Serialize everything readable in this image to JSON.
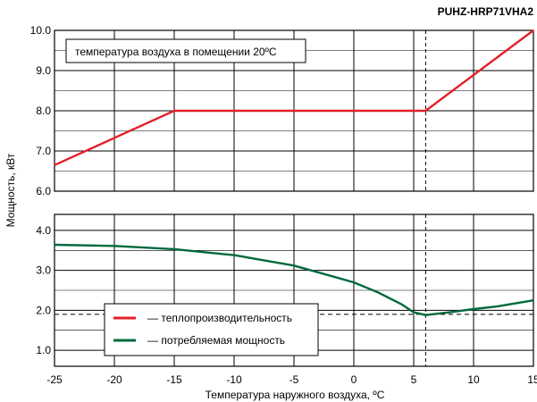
{
  "chart_data": {
    "type": "line",
    "title": "PUHZ-HRP71VHA2",
    "xlabel": "Температура наружного воздуха, ºC",
    "ylabel": "Мощность, кВт",
    "x_ticks": [
      "-25",
      "-20",
      "-15",
      "-10",
      "-5",
      "0",
      "5",
      "10",
      "15"
    ],
    "xlim": [
      -25,
      15
    ],
    "grid": true,
    "reference_x": 6,
    "top_panel": {
      "ylim": [
        6.0,
        10.0
      ],
      "y_ticks": [
        "6.0",
        "7.0",
        "8.0",
        "9.0",
        "10.0"
      ],
      "annotation": "температура воздуха в помещении 20ºC"
    },
    "bottom_panel": {
      "ylim": [
        0.6,
        4.4
      ],
      "y_ticks": [
        "1.0",
        "2.0",
        "3.0",
        "4.0"
      ],
      "reference_y": 1.9
    },
    "legend_placement": "bottom-left",
    "series": [
      {
        "name": "— теплопроизводительность",
        "panel": "top",
        "color": "#e3202a",
        "x": [
          -25,
          -15,
          6,
          15
        ],
        "y": [
          6.65,
          8.0,
          8.0,
          10.0
        ]
      },
      {
        "name": "— потребляемая мощность",
        "panel": "bottom",
        "color": "#00693e",
        "x": [
          -25,
          -20,
          -15,
          -10,
          -5,
          0,
          2,
          4,
          5,
          6,
          8,
          10,
          12,
          15
        ],
        "y": [
          3.64,
          3.61,
          3.53,
          3.38,
          3.12,
          2.7,
          2.45,
          2.15,
          1.95,
          1.88,
          1.95,
          2.03,
          2.1,
          2.25
        ]
      }
    ]
  }
}
